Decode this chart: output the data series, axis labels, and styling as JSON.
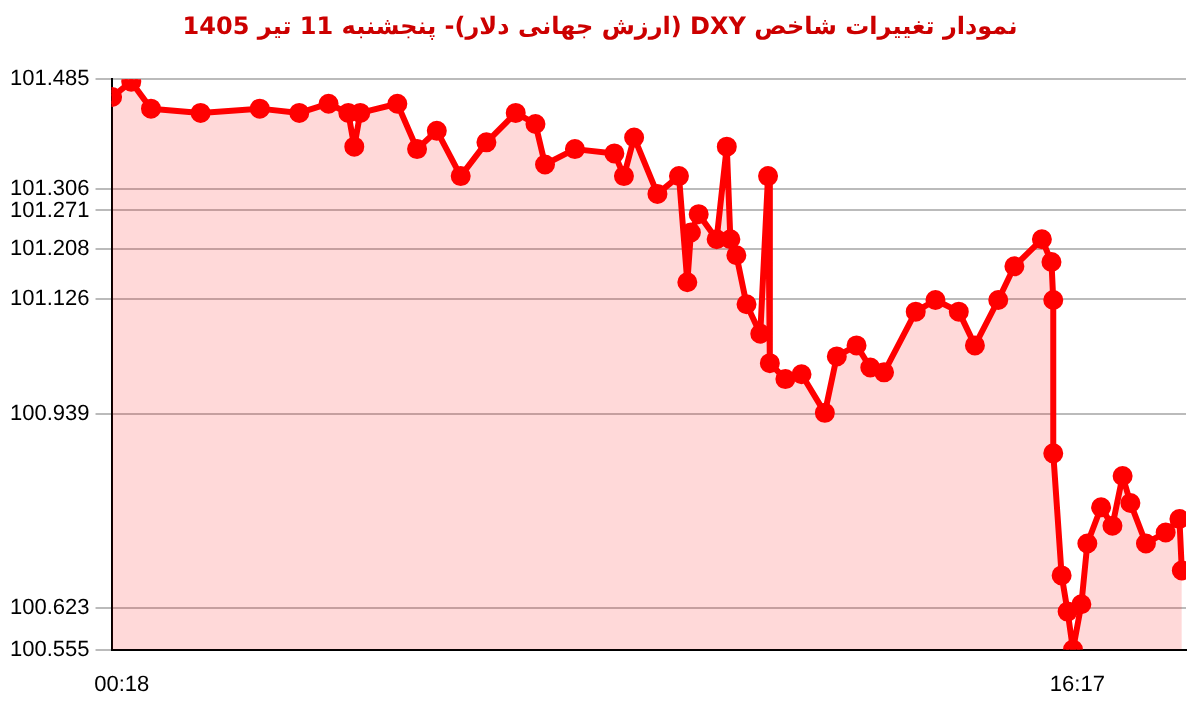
{
  "chart_data": {
    "type": "area",
    "title": "نمودار تغییرات شاخص DXY (ارزش جهانی دلار)-  پنجشنبه  11 تیر 1405",
    "x": [
      0.14,
      0.46,
      0.79,
      1.62,
      2.61,
      3.27,
      3.76,
      4.09,
      4.19,
      4.29,
      4.91,
      5.24,
      5.57,
      5.97,
      6.4,
      6.89,
      7.22,
      7.38,
      7.88,
      8.54,
      8.7,
      8.87,
      9.26,
      9.62,
      9.76,
      9.82,
      9.95,
      10.25,
      10.42,
      10.48,
      10.58,
      10.75,
      10.98,
      11.11,
      11.14,
      11.4,
      11.67,
      12.06,
      12.26,
      12.59,
      12.82,
      13.05,
      13.58,
      13.91,
      14.3,
      14.57,
      14.96,
      15.23,
      15.69,
      15.85,
      15.88,
      15.88,
      16.02,
      16.12,
      16.21,
      16.35,
      16.45,
      16.68,
      16.87,
      17.04,
      17.17,
      17.43,
      17.76,
      17.99,
      18.03
    ],
    "series": [
      {
        "color": "#ff0000",
        "values": [
          101.456,
          101.481,
          101.437,
          101.43,
          101.437,
          101.43,
          101.445,
          101.43,
          101.375,
          101.43,
          101.445,
          101.371,
          101.401,
          101.327,
          101.382,
          101.43,
          101.412,
          101.346,
          101.371,
          101.364,
          101.327,
          101.39,
          101.298,
          101.327,
          101.154,
          101.235,
          101.265,
          101.224,
          101.375,
          101.224,
          101.198,
          101.118,
          101.07,
          101.327,
          101.022,
          100.996,
          101.004,
          100.941,
          101.033,
          101.051,
          101.015,
          101.007,
          101.106,
          101.125,
          101.106,
          101.051,
          101.125,
          101.18,
          101.224,
          101.187,
          101.125,
          100.875,
          100.676,
          100.617,
          100.555,
          100.629,
          100.728,
          100.787,
          100.757,
          100.838,
          100.794,
          100.728,
          100.746,
          100.768,
          100.684
        ]
      }
    ],
    "xlim": [
      0.13,
      18.1
    ],
    "xticks": [
      {
        "value": 0.3,
        "label": "00:18"
      },
      {
        "value": 16.283,
        "label": "16:17"
      }
    ],
    "ylim": [
      100.555,
      101.485
    ],
    "yticks": [
      100.555,
      100.623,
      100.939,
      101.126,
      101.208,
      101.271,
      101.306,
      101.485
    ],
    "grid": "y",
    "marker": "circle",
    "line_style": "solid"
  }
}
